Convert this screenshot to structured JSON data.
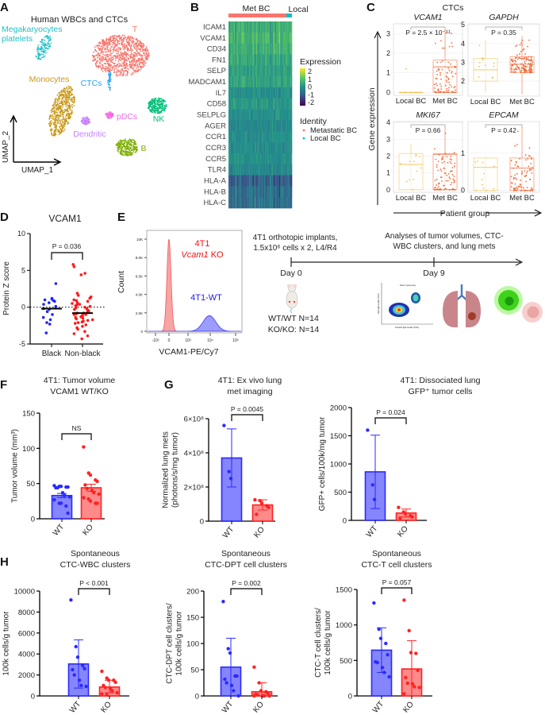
{
  "panel_labels": {
    "a": "A",
    "b": "B",
    "c": "C",
    "d": "D",
    "e": "E",
    "f": "F",
    "g": "G",
    "h": "H"
  },
  "panel_a": {
    "title": "Human WBCs and CTCs",
    "x_axis_label": "UMAP_1",
    "y_axis_label": "UMAP_2",
    "clusters": [
      {
        "label": "T",
        "color": "#f8766d"
      },
      {
        "label": "Megakaryocytes",
        "label2": "platelets",
        "color": "#1fbfc4"
      },
      {
        "label": "Monocytes",
        "color": "#c9971a"
      },
      {
        "label": "CTCs",
        "color": "#2aa3f2"
      },
      {
        "label": "Dendritic",
        "color": "#c77cff"
      },
      {
        "label": "pDCs",
        "color": "#f564e3"
      },
      {
        "label": "NK",
        "color": "#00c07a"
      },
      {
        "label": "B",
        "color": "#7cae00"
      }
    ]
  },
  "panel_b": {
    "groups": [
      {
        "label": "Met BC",
        "color": "#f8766d"
      },
      {
        "label": "Local",
        "color": "#00bfc4"
      }
    ],
    "genes": [
      "ICAM1",
      "VCAM1",
      "CD34",
      "FN1",
      "SELP",
      "MADCAM1",
      "IL7",
      "CD58",
      "SELPLG",
      "AGER",
      "CCR1",
      "CCR3",
      "CCR5",
      "TLR4",
      "HLA-A",
      "HLA-B",
      "HLA-C"
    ],
    "legend_title": "Expression",
    "legend_ticks": [
      "2",
      "1",
      "0",
      "-1",
      "-2"
    ],
    "colormap": "viridis",
    "identity_title": "Identity",
    "identity_entries": [
      {
        "label": "Metastatic BC",
        "color": "#f8766d"
      },
      {
        "label": "Local BC",
        "color": "#00bfc4"
      }
    ]
  },
  "panel_c": {
    "title": "CTCs",
    "y_axis_label": "Gene expression",
    "x_axis_label": "Patient group"
  },
  "panel_e": {
    "protocol_line1": "4T1 orthotopic implants,",
    "protocol_line2": "1.5x10⁶ cells x 2, L4/R4",
    "analysis_line1": "Analyses of tumor volumes, CTC-",
    "analysis_line2": "WBC clusters, and lung mets",
    "day0": "Day 0",
    "day9": "Day 9",
    "group1": "WT/WT N=14",
    "group2": "KO/KO: N=14",
    "flow_title": "Flow cytometry",
    "flow_xlabel": "Forward light scatter (FSC)",
    "flow_ylabel": "Side light scatter (SSC)"
  },
  "chart_data": [
    {
      "id": "c",
      "type": "box",
      "categories": [
        "Local BC",
        "Met BC"
      ],
      "colors": {
        "Local BC": "#f2c14e",
        "Met BC": "#f26b3a"
      },
      "panels": [
        {
          "title": "VCAM1",
          "p_value": "P = 2.5 × 10⁻¹¹",
          "yticks": [
            0,
            1,
            2,
            3
          ],
          "ylim": [
            -0.15,
            3.5
          ],
          "boxes": [
            {
              "q1": 0,
              "median": 0,
              "q3": 0,
              "min": 0,
              "max": 0
            },
            {
              "q1": 0,
              "median": 1.3,
              "q3": 1.65,
              "min": 0,
              "max": 3.2
            }
          ]
        },
        {
          "title": "GAPDH",
          "p_value": "P = 0.35",
          "yticks": [
            2,
            3,
            4,
            5
          ],
          "ylim": [
            1.2,
            5.05
          ],
          "boxes": [
            {
              "q1": 2.0,
              "median": 2.6,
              "q3": 3.2,
              "min": 1.4,
              "max": 4.2
            },
            {
              "q1": 2.45,
              "median": 2.9,
              "q3": 3.3,
              "min": 1.3,
              "max": 4.4
            }
          ]
        },
        {
          "title": "MKI67",
          "p_value": "P = 0.66",
          "yticks": [
            0,
            1,
            2,
            3,
            4
          ],
          "ylim": [
            -0.15,
            4.05
          ],
          "boxes": [
            {
              "q1": 0,
              "median": 1.5,
              "q3": 2.15,
              "min": 0,
              "max": 2.75
            },
            {
              "q1": 0,
              "median": 2.1,
              "q3": 2.15,
              "min": 0,
              "max": 3.7
            }
          ]
        },
        {
          "title": "EPCAM",
          "p_value": "P = 0.42",
          "yticks": [
            0,
            1
          ],
          "ylim": [
            -0.05,
            1.85
          ],
          "boxes": [
            {
              "q1": 0,
              "median": 0.62,
              "q3": 0.87,
              "min": 0,
              "max": 0.9
            },
            {
              "q1": 0,
              "median": 0.6,
              "q3": 0.87,
              "min": 0,
              "max": 1.7
            }
          ]
        }
      ]
    },
    {
      "id": "d",
      "type": "scatter",
      "title": "VCAM1",
      "ylabel": "Protein Z score",
      "categories": [
        "Black",
        "Non-black"
      ],
      "ylim": [
        -5,
        10
      ],
      "yticks": [
        -5,
        0,
        5,
        10
      ],
      "p_value": "P = 0.036",
      "series": [
        {
          "values": [
            3.2,
            1.2,
            1.1,
            1.0,
            0.9,
            0.8,
            0.6,
            0.4,
            0.1,
            -0.2,
            -0.3,
            -0.6,
            -1.0,
            -1.4,
            -1.7,
            -2.1,
            -2.3,
            -3.5
          ],
          "median": -0.2,
          "color": "#2323ff"
        },
        {
          "values": [
            5.8,
            5.5,
            4.6,
            4.4,
            1.9,
            1.6,
            1.4,
            1.2,
            1.0,
            0.9,
            0.8,
            0.6,
            0.5,
            0.4,
            0.3,
            0.2,
            0.1,
            0.0,
            -0.1,
            -0.2,
            -0.3,
            -0.4,
            -0.5,
            -0.6,
            -0.7,
            -0.8,
            -0.8,
            -0.9,
            -1.0,
            -1.0,
            -1.1,
            -1.2,
            -1.3,
            -1.4,
            -1.5,
            -1.6,
            -1.7,
            -1.8,
            -1.9,
            -2.0,
            -2.1,
            -2.2,
            -2.4,
            -2.6,
            -2.8,
            -3.0,
            -3.3,
            -3.6,
            -3.9,
            -4.3
          ],
          "median": -0.8,
          "color": "#ff1a1a"
        }
      ]
    },
    {
      "id": "e",
      "type": "area",
      "xlabel": "VCAM1-PE/Cy7",
      "ylabel": "Count",
      "xticks": [
        "-10³",
        "0",
        "10³",
        "10⁴",
        "10⁵"
      ],
      "yticks": [
        "0",
        "2.0K",
        "4.0K",
        "6.0K",
        "8.0K",
        "10K"
      ],
      "series": [
        {
          "name": "4T1",
          "name_italic": "Vcam1",
          "name_suffix": " KO",
          "peak_x": 0,
          "peak_count": 10000,
          "color": "#f05a5a"
        },
        {
          "name": "4T1-WT",
          "peak_x": 10000,
          "peak_count": 1700,
          "color": "#3a3aff"
        }
      ]
    },
    {
      "id": "f",
      "type": "bar",
      "title": [
        "4T1: Tumor volume",
        "VCAM1 WT/KO"
      ],
      "ylabel": "Tumor volume (mm³)",
      "ylim": [
        0,
        150
      ],
      "yticks": [
        {
          "v": 0,
          "label": "0"
        },
        {
          "v": 50,
          "label": "50"
        },
        {
          "v": 100,
          "label": "100"
        },
        {
          "v": 150,
          "label": "150"
        }
      ],
      "p_value": "NS",
      "bars": [
        {
          "label": "WT",
          "value": 33,
          "err": [
            30,
            36
          ],
          "points": [
            47,
            46,
            46,
            45,
            45,
            44,
            44,
            37,
            33,
            31,
            27,
            22,
            22,
            18,
            8
          ]
        },
        {
          "label": "KO",
          "value": 44,
          "err": [
            39,
            49
          ],
          "points": [
            102,
            65,
            62,
            55,
            53,
            48,
            43,
            40,
            37,
            35,
            30,
            28,
            25,
            22,
            22
          ]
        }
      ]
    },
    {
      "id": "g1",
      "type": "bar",
      "title": [
        "4T1: Ex vivo lung",
        "met imaging"
      ],
      "ylabel": [
        "Normalized lung mets",
        "(photons/s/mg tumor)"
      ],
      "ylim": [
        0,
        600000000
      ],
      "yticks": [
        {
          "v": 0,
          "label": "0"
        },
        {
          "v": 200000000,
          "label": "2×10⁸"
        },
        {
          "v": 400000000,
          "label": "4×10⁸"
        },
        {
          "v": 600000000,
          "label": "6×10⁸"
        }
      ],
      "p_value": "P = 0.0045",
      "bars": [
        {
          "label": "WT",
          "value": 370000000,
          "err": [
            200000000,
            540000000
          ],
          "points": [
            560000000,
            290000000,
            250000000
          ]
        },
        {
          "label": "KO",
          "value": 95000000,
          "err": [
            65000000,
            125000000
          ],
          "points": [
            125000000,
            120000000,
            105000000,
            90000000,
            80000000,
            40000000
          ]
        }
      ]
    },
    {
      "id": "g2",
      "type": "bar",
      "title": [
        "4T1: Dissociated lung",
        "GFP⁺ tumor cells"
      ],
      "ylabel": "GFP+ cells/100k/mg tumor",
      "ylim": [
        0,
        2000
      ],
      "yticks": [
        {
          "v": 0,
          "label": "0"
        },
        {
          "v": 500,
          "label": "500"
        },
        {
          "v": 1000,
          "label": "1000"
        },
        {
          "v": 1500,
          "label": "1500"
        },
        {
          "v": 2000,
          "label": "2000"
        }
      ],
      "p_value": "P = 0.024",
      "bars": [
        {
          "label": "WT",
          "value": 860,
          "err": [
            210,
            1510
          ],
          "points": [
            1600,
            630,
            370
          ]
        },
        {
          "label": "KO",
          "value": 130,
          "err": [
            60,
            200
          ],
          "points": [
            230,
            150,
            120,
            80,
            60,
            40
          ]
        }
      ]
    },
    {
      "id": "h1",
      "type": "bar",
      "title": [
        "Spontaneous",
        "CTC-WBC clusters"
      ],
      "ylabel": [
        "CTC-WBC clusters/",
        "100k cells/g tumor"
      ],
      "ylim": [
        0,
        10000
      ],
      "yticks": [
        {
          "v": 0,
          "label": "0"
        },
        {
          "v": 2000,
          "label": "2000"
        },
        {
          "v": 4000,
          "label": "4000"
        },
        {
          "v": 6000,
          "label": "6000"
        },
        {
          "v": 8000,
          "label": "8000"
        },
        {
          "v": 10000,
          "label": "10000"
        }
      ],
      "p_value": "P < 0.001",
      "bars": [
        {
          "label": "WT",
          "value": 3050,
          "err": [
            750,
            5350
          ],
          "points": [
            9150,
            4700,
            3700,
            2900,
            2600,
            2500,
            2000,
            1500,
            1000,
            900
          ]
        },
        {
          "label": "KO",
          "value": 850,
          "err": [
            300,
            1500
          ],
          "points": [
            2350,
            1700,
            1500,
            1500,
            1300,
            1000,
            800,
            700,
            500,
            300,
            200,
            100
          ]
        }
      ]
    },
    {
      "id": "h2",
      "type": "bar",
      "title": [
        "Spontaneous",
        "CTC-DPT cell clusters"
      ],
      "ylabel": [
        "CTC-DPT cell clusters/",
        "100k cells/g tumor"
      ],
      "ylim": [
        0,
        200
      ],
      "yticks": [
        {
          "v": 0,
          "label": "0"
        },
        {
          "v": 50,
          "label": "50"
        },
        {
          "v": 100,
          "label": "100"
        },
        {
          "v": 150,
          "label": "150"
        },
        {
          "v": 200,
          "label": "200"
        }
      ],
      "p_value": "P = 0.002",
      "bars": [
        {
          "label": "WT",
          "value": 55,
          "err": [
            0,
            110
          ],
          "points": [
            180,
            90,
            82,
            38,
            38,
            32,
            25,
            20,
            10,
            0
          ]
        },
        {
          "label": "KO",
          "value": 8,
          "err": [
            0,
            25
          ],
          "points": [
            55,
            25,
            10,
            8,
            5,
            3,
            2,
            0,
            0,
            0,
            0
          ]
        }
      ]
    },
    {
      "id": "h3",
      "type": "bar",
      "title": [
        "Spontaneous",
        "CTC-T cell clusters"
      ],
      "ylabel": [
        "CTC-T cell clusters/",
        "100k cells/g tumor"
      ],
      "ylim": [
        0,
        1500
      ],
      "yticks": [
        {
          "v": 0,
          "label": "0"
        },
        {
          "v": 500,
          "label": "500"
        },
        {
          "v": 1000,
          "label": "1000"
        },
        {
          "v": 1500,
          "label": "1500"
        }
      ],
      "p_value": "P = 0.057",
      "bars": [
        {
          "label": "WT",
          "value": 645,
          "err": [
            330,
            960
          ],
          "points": [
            1310,
            940,
            810,
            740,
            580,
            480,
            470,
            400,
            330,
            270
          ]
        },
        {
          "label": "KO",
          "value": 380,
          "err": [
            0,
            780
          ],
          "points": [
            1350,
            920,
            610,
            600,
            360,
            260,
            180,
            170,
            130,
            120,
            30
          ]
        }
      ]
    }
  ],
  "colors": {
    "wt_line": "#2a2aff",
    "wt_fill": "#8585ff",
    "ko_line": "#ff2222",
    "ko_fill": "#ff8a8a"
  }
}
